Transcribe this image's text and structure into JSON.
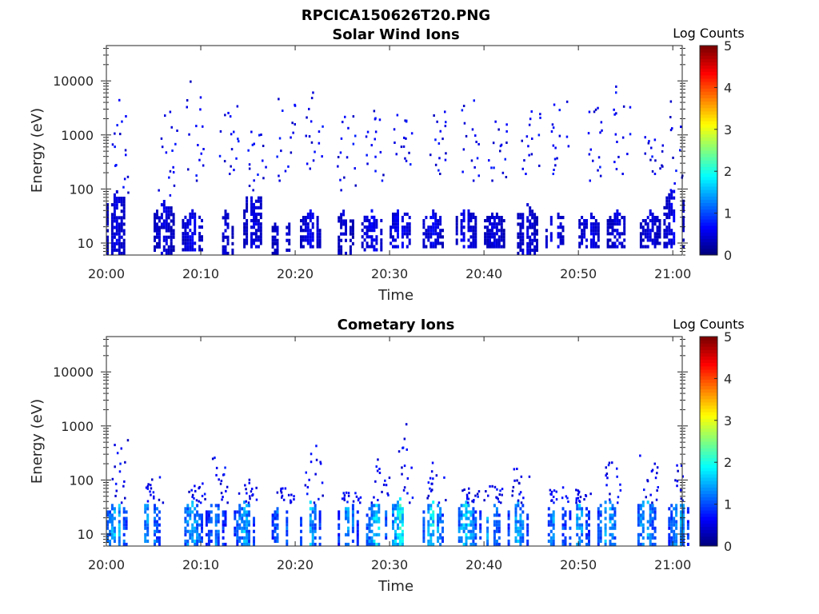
{
  "figure_title": "RPCICA150626T20.PNG",
  "colors": {
    "axis": "#262626",
    "background": "#ffffff"
  },
  "chart_data": [
    {
      "type": "heatmap",
      "title": "Solar Wind Ions",
      "xlabel": "Time",
      "ylabel": "Energy (eV)",
      "yscale": "log",
      "ylim": [
        6,
        45000
      ],
      "xlim": [
        "20:00",
        "21:01"
      ],
      "xticks": [
        "20:00",
        "20:10",
        "20:20",
        "20:30",
        "20:40",
        "20:50",
        "21:00"
      ],
      "yticks": [
        "10",
        "100",
        "1000",
        "10000"
      ],
      "colorbar": {
        "label": "Log Counts",
        "range": [
          0,
          5
        ],
        "ticks": [
          "0",
          "1",
          "2",
          "3",
          "4",
          "5"
        ],
        "colormap": "jet"
      },
      "bursts": [
        {
          "t": 1.0,
          "low": [
            6,
            90
          ],
          "scatter": [
            90,
            10000
          ],
          "peak": 0.6
        },
        {
          "t": 6.0,
          "low": [
            6,
            60
          ],
          "scatter": [
            80,
            6000
          ],
          "peak": 0.6
        },
        {
          "t": 9.0,
          "low": [
            7,
            40
          ],
          "scatter": [
            150,
            20000
          ],
          "peak": 0.7
        },
        {
          "t": 12.5,
          "low": [
            6,
            40
          ],
          "scatter": [
            200,
            6000
          ],
          "peak": 0.5
        },
        {
          "t": 15.5,
          "low": [
            8,
            90
          ],
          "scatter": [
            100,
            3000
          ],
          "peak": 0.6
        },
        {
          "t": 18.5,
          "low": [
            6,
            30
          ],
          "scatter": [
            150,
            11000
          ],
          "peak": 0.6
        },
        {
          "t": 21.5,
          "low": [
            8,
            40
          ],
          "scatter": [
            250,
            9000
          ],
          "peak": 0.7
        },
        {
          "t": 25.0,
          "low": [
            6,
            40
          ],
          "scatter": [
            100,
            5000
          ],
          "peak": 0.5
        },
        {
          "t": 28.0,
          "low": [
            7,
            40
          ],
          "scatter": [
            150,
            9000
          ],
          "peak": 0.7
        },
        {
          "t": 31.0,
          "low": [
            8,
            45
          ],
          "scatter": [
            300,
            4000
          ],
          "peak": 0.8
        },
        {
          "t": 34.5,
          "low": [
            8,
            40
          ],
          "scatter": [
            200,
            5000
          ],
          "peak": 0.7
        },
        {
          "t": 38.0,
          "low": [
            8,
            45
          ],
          "scatter": [
            150,
            9000
          ],
          "peak": 0.7
        },
        {
          "t": 41.0,
          "low": [
            8,
            40
          ],
          "scatter": [
            150,
            3000
          ],
          "peak": 0.6
        },
        {
          "t": 44.5,
          "low": [
            6,
            50
          ],
          "scatter": [
            200,
            6000
          ],
          "peak": 0.6
        },
        {
          "t": 47.5,
          "low": [
            8,
            40
          ],
          "scatter": [
            200,
            7000
          ],
          "peak": 0.7
        },
        {
          "t": 51.0,
          "low": [
            8,
            40
          ],
          "scatter": [
            150,
            10000
          ],
          "peak": 0.7
        },
        {
          "t": 54.0,
          "low": [
            8,
            40
          ],
          "scatter": [
            200,
            22000
          ],
          "peak": 0.6
        },
        {
          "t": 57.5,
          "low": [
            8,
            40
          ],
          "scatter": [
            200,
            1500
          ],
          "peak": 0.6
        },
        {
          "t": 60.0,
          "low": [
            8,
            100
          ],
          "scatter": [
            100,
            10000
          ],
          "peak": 0.7
        }
      ]
    },
    {
      "type": "heatmap",
      "title": "Cometary Ions",
      "xlabel": "Time",
      "ylabel": "Energy (eV)",
      "yscale": "log",
      "ylim": [
        6,
        45000
      ],
      "xlim": [
        "20:00",
        "21:01"
      ],
      "xticks": [
        "20:00",
        "20:10",
        "20:20",
        "20:30",
        "20:40",
        "20:50",
        "21:00"
      ],
      "yticks": [
        "10",
        "100",
        "1000",
        "10000"
      ],
      "colorbar": {
        "label": "Log Counts",
        "range": [
          0,
          5
        ],
        "ticks": [
          "0",
          "1",
          "2",
          "3",
          "4",
          "5"
        ],
        "colormap": "jet"
      },
      "bursts": [
        {
          "t": 1.0,
          "low": [
            6,
            40
          ],
          "scatter": [
            40,
            900
          ],
          "peak": 2.0
        },
        {
          "t": 4.5,
          "low": [
            6,
            40
          ],
          "scatter": [
            40,
            150
          ],
          "peak": 1.8
        },
        {
          "t": 9.0,
          "low": [
            6,
            40
          ],
          "scatter": [
            40,
            100
          ],
          "peak": 1.9
        },
        {
          "t": 11.5,
          "low": [
            6,
            40
          ],
          "scatter": [
            40,
            400
          ],
          "peak": 1.5
        },
        {
          "t": 14.5,
          "low": [
            6,
            40
          ],
          "scatter": [
            40,
            120
          ],
          "peak": 1.8
        },
        {
          "t": 18.5,
          "low": [
            6,
            35
          ],
          "scatter": [
            40,
            90
          ],
          "peak": 1.7
        },
        {
          "t": 21.5,
          "low": [
            6,
            40
          ],
          "scatter": [
            40,
            600
          ],
          "peak": 1.8
        },
        {
          "t": 25.5,
          "low": [
            6,
            40
          ],
          "scatter": [
            40,
            70
          ],
          "peak": 1.7
        },
        {
          "t": 28.5,
          "low": [
            6,
            40
          ],
          "scatter": [
            40,
            300
          ],
          "peak": 2.1
        },
        {
          "t": 31.0,
          "low": [
            6,
            45
          ],
          "scatter": [
            40,
            1500
          ],
          "peak": 2.3
        },
        {
          "t": 34.5,
          "low": [
            6,
            40
          ],
          "scatter": [
            40,
            300
          ],
          "peak": 2.1
        },
        {
          "t": 38.0,
          "low": [
            6,
            40
          ],
          "scatter": [
            40,
            80
          ],
          "peak": 2.1
        },
        {
          "t": 40.5,
          "low": [
            6,
            40
          ],
          "scatter": [
            40,
            100
          ],
          "peak": 1.9
        },
        {
          "t": 43.5,
          "low": [
            6,
            40
          ],
          "scatter": [
            40,
            250
          ],
          "peak": 1.8
        },
        {
          "t": 47.5,
          "low": [
            6,
            40
          ],
          "scatter": [
            40,
            80
          ],
          "peak": 1.8
        },
        {
          "t": 50.0,
          "low": [
            6,
            40
          ],
          "scatter": [
            40,
            80
          ],
          "peak": 1.8
        },
        {
          "t": 53.0,
          "low": [
            6,
            45
          ],
          "scatter": [
            40,
            500
          ],
          "peak": 1.9
        },
        {
          "t": 57.0,
          "low": [
            6,
            45
          ],
          "scatter": [
            40,
            400
          ],
          "peak": 1.9
        },
        {
          "t": 60.5,
          "low": [
            6,
            45
          ],
          "scatter": [
            40,
            250
          ],
          "peak": 1.8
        }
      ]
    }
  ]
}
